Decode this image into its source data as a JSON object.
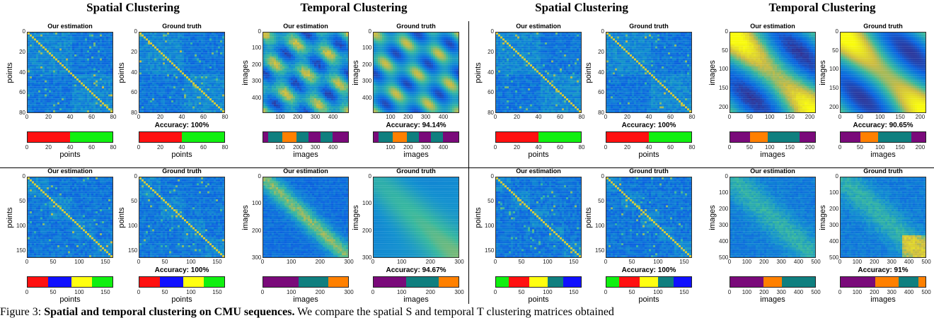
{
  "headers": [
    "Spatial Clustering",
    "Temporal Clustering",
    "Spatial Clustering",
    "Temporal Clustering"
  ],
  "caption": {
    "prefix": "Figure 3: ",
    "bold": "Spatial and temporal clustering on CMU sequences.",
    "rest": " We compare the spatial S and temporal T clustering matrices obtained"
  },
  "chart_data": {
    "type": "heatmap",
    "figures": [
      {
        "id": "A1",
        "kind": "spatial",
        "panels": [
          "Our estimation",
          "Ground truth"
        ],
        "ticks": [
          "0",
          "20",
          "40",
          "60",
          "80"
        ],
        "xlabel": "points",
        "ylabel": "points",
        "max": 80,
        "accuracy": "Accuracy: 100%",
        "est_segments": [
          {
            "label": "1",
            "end": 40,
            "color": "#ff1010"
          },
          {
            "label": "2",
            "end": 80,
            "color": "#10f010"
          }
        ],
        "gt_segments": [
          {
            "label": "1",
            "end": 40,
            "color": "#ff1010"
          },
          {
            "label": "2",
            "end": 80,
            "color": "#10f010"
          }
        ]
      },
      {
        "id": "A2",
        "kind": "temporal",
        "panels": [
          "Our estimation",
          "Ground truth"
        ],
        "xticks": [
          "100",
          "200",
          "300",
          "400"
        ],
        "yticks": [
          "0",
          "100",
          "200",
          "300",
          "400"
        ],
        "xlabel": "images",
        "ylabel": "images",
        "max": 490,
        "accuracy": "Accuracy: 94.14%",
        "est_segments": [
          {
            "label": "1",
            "end": 30,
            "color": "#7a0a7a"
          },
          {
            "label": "2",
            "end": 110,
            "color": "#0f7f7f"
          },
          {
            "label": "3",
            "end": 190,
            "color": "#ff8000"
          },
          {
            "label": "4",
            "end": 260,
            "color": "#0f7f7f"
          },
          {
            "label": "5",
            "end": 330,
            "color": "#7a0a7a"
          },
          {
            "label": "6",
            "end": 400,
            "color": "#0f7f7f"
          },
          {
            "label": "7",
            "end": 490,
            "color": "#7a0a7a"
          }
        ],
        "gt_segments": [
          {
            "label": "1",
            "end": 30,
            "color": "#7a0a7a"
          },
          {
            "label": "2",
            "end": 110,
            "color": "#0f7f7f"
          },
          {
            "label": "3",
            "end": 190,
            "color": "#ff8000"
          },
          {
            "label": "4",
            "end": 260,
            "color": "#0f7f7f"
          },
          {
            "label": "5",
            "end": 330,
            "color": "#7a0a7a"
          },
          {
            "label": "6",
            "end": 400,
            "color": "#0f7f7f"
          },
          {
            "label": "7",
            "end": 490,
            "color": "#7a0a7a"
          }
        ]
      },
      {
        "id": "A3",
        "kind": "spatial",
        "panels": [
          "Our estimation",
          "Ground truth"
        ],
        "ticks": [
          "0",
          "20",
          "40",
          "60",
          "80"
        ],
        "xlabel": "points",
        "ylabel": "points",
        "max": 80,
        "accuracy": "Accuracy: 100%",
        "est_segments": [
          {
            "label": "1",
            "end": 40,
            "color": "#ff1010"
          },
          {
            "label": "2",
            "end": 80,
            "color": "#10f010"
          }
        ],
        "gt_segments": [
          {
            "label": "1",
            "end": 40,
            "color": "#ff1010"
          },
          {
            "label": "2",
            "end": 80,
            "color": "#10f010"
          }
        ]
      },
      {
        "id": "A4",
        "kind": "temporal",
        "panels": [
          "Our estimation",
          "Ground truth"
        ],
        "ticks": [
          "0",
          "50",
          "100",
          "150",
          "200"
        ],
        "xlabel": "images",
        "ylabel": "images",
        "max": 215,
        "accuracy": "Accuracy: 90.65%",
        "est_segments": [
          {
            "label": "1",
            "end": 50,
            "color": "#7a0a7a"
          },
          {
            "label": "2",
            "end": 95,
            "color": "#ff8000"
          },
          {
            "label": "3",
            "end": 175,
            "color": "#0f7f7f"
          },
          {
            "label": "4",
            "end": 215,
            "color": "#7a0a7a"
          }
        ],
        "gt_segments": [
          {
            "label": "1",
            "end": 50,
            "color": "#7a0a7a"
          },
          {
            "label": "2",
            "end": 95,
            "color": "#ff8000"
          },
          {
            "label": "3",
            "end": 145,
            "color": "#0f7f7f"
          },
          {
            "label": "4",
            "end": 180,
            "color": "#0f7f7f"
          },
          {
            "label": "5",
            "end": 215,
            "color": "#7a0a7a"
          }
        ]
      },
      {
        "id": "B1",
        "kind": "spatial",
        "panels": [
          "Our estimation",
          "Ground truth"
        ],
        "ticks": [
          "0",
          "50",
          "100",
          "150"
        ],
        "xlabel": "points",
        "ylabel": "points",
        "max": 165,
        "accuracy": "Accuracy: 100%",
        "est_segments": [
          {
            "label": "1",
            "end": 40,
            "color": "#ff1010"
          },
          {
            "label": "2",
            "end": 85,
            "color": "#1010ff"
          },
          {
            "label": "3",
            "end": 125,
            "color": "#ffff10"
          },
          {
            "label": "4",
            "end": 165,
            "color": "#10f010"
          }
        ],
        "gt_segments": [
          {
            "label": "1",
            "end": 40,
            "color": "#ff1010"
          },
          {
            "label": "2",
            "end": 85,
            "color": "#1010ff"
          },
          {
            "label": "3",
            "end": 125,
            "color": "#ffff10"
          },
          {
            "label": "4",
            "end": 165,
            "color": "#10f010"
          }
        ]
      },
      {
        "id": "B2",
        "kind": "temporal",
        "panels": [
          "Our estimation",
          "Ground truth"
        ],
        "ticks": [
          "0",
          "100",
          "200",
          "300"
        ],
        "xlabel": "images",
        "ylabel": "images",
        "max": 300,
        "accuracy": "Accuracy: 94.67%",
        "est_segments": [
          {
            "label": "1",
            "end": 125,
            "color": "#7a0a7a"
          },
          {
            "label": "2",
            "end": 230,
            "color": "#0f7f7f"
          },
          {
            "label": "3",
            "end": 300,
            "color": "#ff8000"
          }
        ],
        "gt_segments": [
          {
            "label": "1",
            "end": 115,
            "color": "#7a0a7a"
          },
          {
            "label": "2",
            "end": 230,
            "color": "#0f7f7f"
          },
          {
            "label": "3",
            "end": 300,
            "color": "#ff8000"
          }
        ]
      },
      {
        "id": "B3",
        "kind": "spatial",
        "panels": [
          "Our estimation",
          "Ground truth"
        ],
        "ticks": [
          "0",
          "50",
          "100",
          "150"
        ],
        "xlabel": "points",
        "ylabel": "points",
        "max": 165,
        "accuracy": "Accuracy: 100%",
        "est_segments": [
          {
            "label": "1",
            "end": 25,
            "color": "#10f010"
          },
          {
            "label": "2",
            "end": 65,
            "color": "#ff1010"
          },
          {
            "label": "3",
            "end": 100,
            "color": "#ffff10"
          },
          {
            "label": "4",
            "end": 130,
            "color": "#0f7f7f"
          },
          {
            "label": "5",
            "end": 165,
            "color": "#1010ff"
          }
        ],
        "gt_segments": [
          {
            "label": "1",
            "end": 25,
            "color": "#10f010"
          },
          {
            "label": "2",
            "end": 65,
            "color": "#ff1010"
          },
          {
            "label": "3",
            "end": 100,
            "color": "#ffff10"
          },
          {
            "label": "4",
            "end": 130,
            "color": "#0f7f7f"
          },
          {
            "label": "5",
            "end": 165,
            "color": "#1010ff"
          }
        ]
      },
      {
        "id": "B4",
        "kind": "temporal",
        "panels": [
          "Our estimation",
          "Ground truth"
        ],
        "ticks": [
          "0",
          "100",
          "200",
          "300",
          "400",
          "500"
        ],
        "xlabel": "images",
        "ylabel": "images",
        "max": 500,
        "accuracy": "Accuracy: 91%",
        "est_segments": [
          {
            "label": "1",
            "end": 195,
            "color": "#7a0a7a"
          },
          {
            "label": "2",
            "end": 305,
            "color": "#ff8000"
          },
          {
            "label": "3",
            "end": 500,
            "color": "#0f7f7f"
          }
        ],
        "gt_segments": [
          {
            "label": "1",
            "end": 205,
            "color": "#7a0a7a"
          },
          {
            "label": "2",
            "end": 340,
            "color": "#ff8000"
          },
          {
            "label": "3",
            "end": 460,
            "color": "#0f7f7f"
          },
          {
            "label": "4",
            "end": 500,
            "color": "#ff8000"
          }
        ]
      }
    ]
  }
}
